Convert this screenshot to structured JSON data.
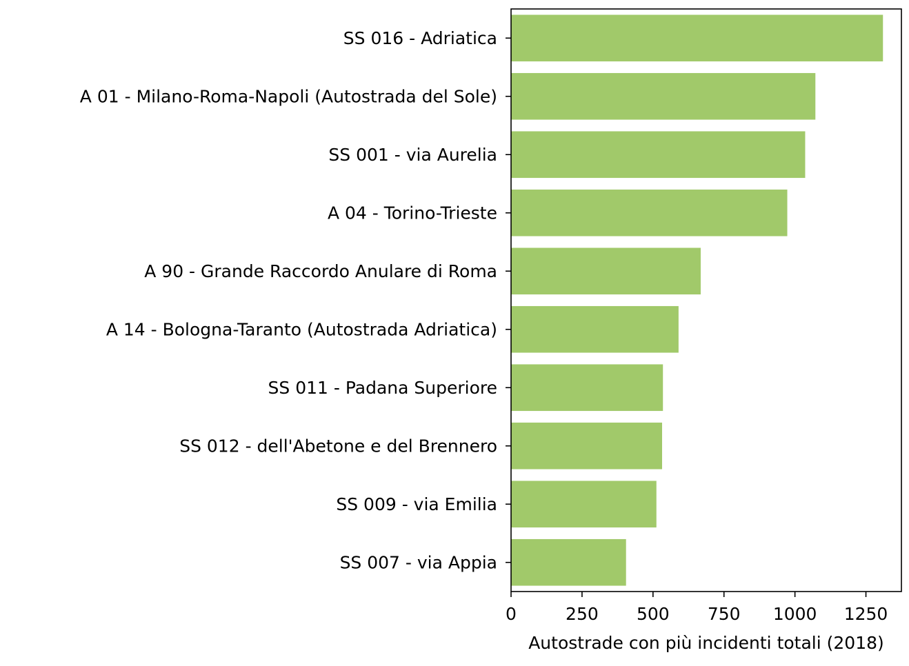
{
  "chart_data": {
    "type": "bar",
    "orientation": "horizontal",
    "categories": [
      "SS 016 -  Adriatica",
      "A 01 -  Milano-Roma-Napoli (Autostrada del Sole)",
      "SS 001 -  via Aurelia",
      "A 04 -  Torino-Trieste",
      "A 90 -  Grande Raccordo Anulare di Roma",
      "A 14 -  Bologna-Taranto (Autostrada Adriatica)",
      "SS 011 -  Padana Superiore",
      "SS 012 -  dell'Abetone e del Brennero",
      "SS 009 -  via Emilia",
      "SS 007 -  via Appia"
    ],
    "values": [
      1310,
      1072,
      1036,
      973,
      668,
      590,
      535,
      532,
      512,
      405
    ],
    "xlabel": "Autostrade con più incidenti totali (2018)",
    "ylabel": "",
    "xlim": [
      0,
      1375
    ],
    "xticks": [
      0,
      250,
      500,
      750,
      1000,
      1250
    ],
    "bar_color": "#a1c96a",
    "grid": false
  }
}
